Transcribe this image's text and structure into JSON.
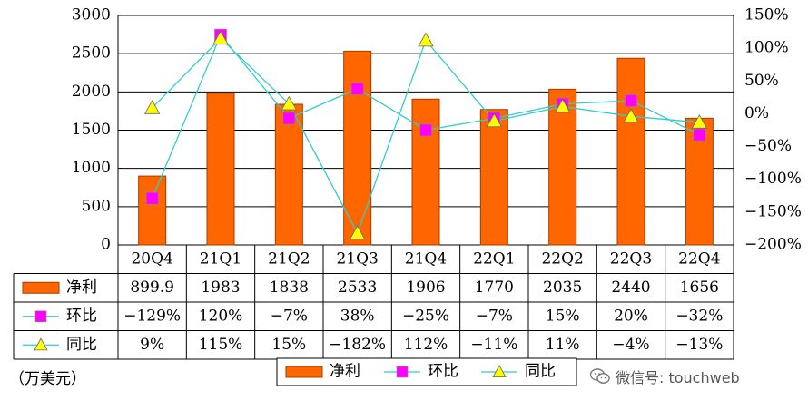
{
  "chart_data": {
    "type": "bar+line",
    "categories": [
      "20Q4",
      "21Q1",
      "21Q2",
      "21Q3",
      "21Q4",
      "22Q1",
      "22Q2",
      "22Q3",
      "22Q4"
    ],
    "series": [
      {
        "name": "净利",
        "type": "bar",
        "axis": "left",
        "values": [
          899.9,
          1983,
          1838,
          2533,
          1906,
          1770,
          2035,
          2440,
          1656
        ],
        "labels": [
          "899.9",
          "1983",
          "1838",
          "2533",
          "1906",
          "1770",
          "2035",
          "2440",
          "1656"
        ]
      },
      {
        "name": "环比",
        "type": "line",
        "axis": "right",
        "marker": "square",
        "values": [
          -129,
          120,
          -7,
          38,
          -25,
          -7,
          15,
          20,
          -32
        ],
        "labels": [
          "-129%",
          "120%",
          "-7%",
          "38%",
          "-25%",
          "-7%",
          "15%",
          "20%",
          "-32%"
        ]
      },
      {
        "name": "同比",
        "type": "line",
        "axis": "right",
        "marker": "triangle",
        "values": [
          9,
          115,
          15,
          -182,
          112,
          -11,
          11,
          -4,
          -13
        ],
        "labels": [
          "9%",
          "115%",
          "15%",
          "-182%",
          "112%",
          "-11%",
          "11%",
          "-4%",
          "-13%"
        ]
      }
    ],
    "left_axis": {
      "ylim": [
        0,
        3000
      ],
      "ticks": [
        {
          "v": 0,
          "label": "0"
        },
        {
          "v": 500,
          "label": "500"
        },
        {
          "v": 1000,
          "label": "1000"
        },
        {
          "v": 1500,
          "label": "1500"
        },
        {
          "v": 2000,
          "label": "2000"
        },
        {
          "v": 2500,
          "label": "2500"
        },
        {
          "v": 3000,
          "label": "3000"
        }
      ]
    },
    "right_axis": {
      "ylim": [
        -200,
        150
      ],
      "ticks": [
        {
          "v": -200,
          "label": "-200%"
        },
        {
          "v": -150,
          "label": "-150%"
        },
        {
          "v": -100,
          "label": "-100%"
        },
        {
          "v": -50,
          "label": "-50%"
        },
        {
          "v": 0,
          "label": "0%"
        },
        {
          "v": 50,
          "label": "50%"
        },
        {
          "v": 100,
          "label": "100%"
        },
        {
          "v": 150,
          "label": "150%"
        }
      ]
    },
    "grid": "horizontal",
    "legend": "bottom-center",
    "colors": {
      "bar": "#FF6600",
      "bar_edge": "#A33C00",
      "mom_line": "#33CCCC",
      "mom_marker": "#FF00FF",
      "yoy_line": "#33CCCC",
      "yoy_marker": "#FFFF00"
    }
  },
  "unit_label": "（万美元）",
  "watermark": "微信号: touchweb"
}
